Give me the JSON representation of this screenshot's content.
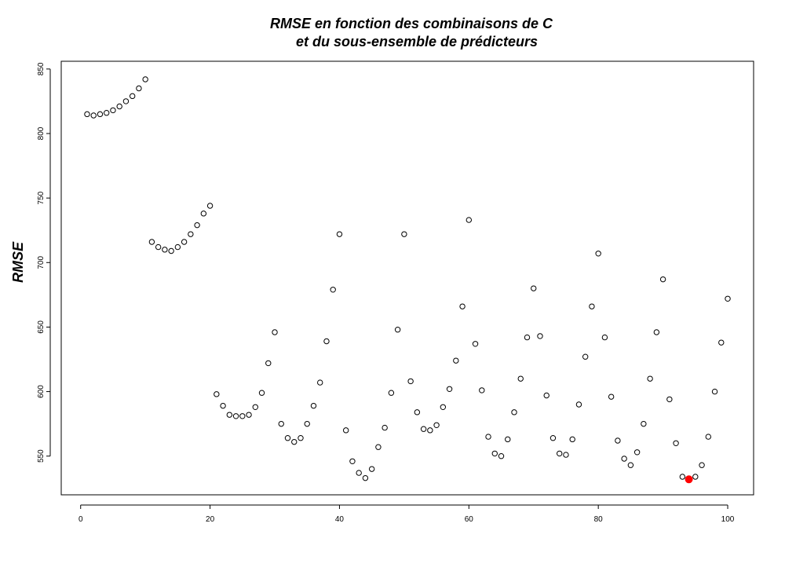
{
  "chart_data": {
    "type": "scatter",
    "title_line1": "RMSE en fonction des combinaisons de C",
    "title_line2": "et du sous-ensemble de prédicteurs",
    "xlabel": "",
    "ylabel": "RMSE",
    "xlim": [
      -3,
      104
    ],
    "ylim": [
      520,
      856
    ],
    "xticks": [
      0,
      20,
      40,
      60,
      80,
      100
    ],
    "yticks": [
      550,
      600,
      650,
      700,
      750,
      800,
      850
    ],
    "marker": "open-circle",
    "point_color": "#000000",
    "highlight_color": "#ff0000",
    "highlight": {
      "x": 94,
      "y": 532
    },
    "x": [
      1,
      2,
      3,
      4,
      5,
      6,
      7,
      8,
      9,
      10,
      11,
      12,
      13,
      14,
      15,
      16,
      17,
      18,
      19,
      20,
      21,
      22,
      23,
      24,
      25,
      26,
      27,
      28,
      29,
      30,
      31,
      32,
      33,
      34,
      35,
      36,
      37,
      38,
      39,
      40,
      41,
      42,
      43,
      44,
      45,
      46,
      47,
      48,
      49,
      50,
      51,
      52,
      53,
      54,
      55,
      56,
      57,
      58,
      59,
      60,
      61,
      62,
      63,
      64,
      65,
      66,
      67,
      68,
      69,
      70,
      71,
      72,
      73,
      74,
      75,
      76,
      77,
      78,
      79,
      80,
      81,
      82,
      83,
      84,
      85,
      86,
      87,
      88,
      89,
      90,
      91,
      92,
      93,
      94,
      95,
      96,
      97,
      98,
      99,
      100
    ],
    "y": [
      815,
      814,
      815,
      816,
      818,
      821,
      825,
      829,
      835,
      842,
      716,
      712,
      710,
      709,
      712,
      716,
      722,
      729,
      738,
      744,
      598,
      589,
      582,
      581,
      581,
      582,
      588,
      599,
      622,
      646,
      575,
      564,
      561,
      564,
      575,
      589,
      607,
      639,
      679,
      722,
      570,
      546,
      537,
      533,
      540,
      557,
      572,
      599,
      648,
      722,
      608,
      584,
      571,
      570,
      574,
      588,
      602,
      624,
      666,
      733,
      637,
      601,
      565,
      552,
      550,
      563,
      584,
      610,
      642,
      680,
      643,
      597,
      564,
      552,
      551,
      563,
      590,
      627,
      666,
      707,
      642,
      596,
      562,
      548,
      543,
      553,
      575,
      610,
      646,
      687,
      594,
      560,
      534,
      532,
      534,
      543,
      565,
      600,
      638,
      672
    ]
  }
}
